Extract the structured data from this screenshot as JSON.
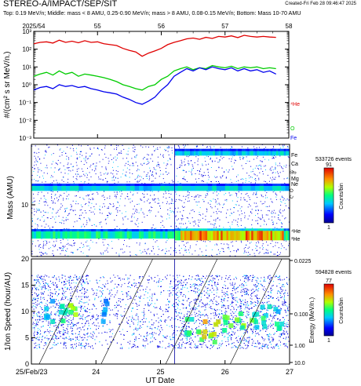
{
  "header": {
    "title": "STEREO-A/IMPACT/SEP/SIT",
    "created": "Created-Fri Feb 28 09:46:47 2025",
    "subtitle": "Top: 0.19 MeV/n; Middle: mass < 8 AMU, 0.25-0.90 MeV/n; mass > 8 AMU, 0.08-0.15 MeV/n; Bottom: Mass 10-70 AMU"
  },
  "colors": {
    "he4": "#e00000",
    "o": "#00cc00",
    "fe": "#0000ee",
    "he3_label": "#e00000",
    "o_label": "#00cc00",
    "fe_label": "#0000ee"
  },
  "chart_data": [
    {
      "type": "line",
      "panel": "top",
      "ylabel": "#/(cm² s sr MeV/n.)",
      "yscale": "log",
      "ylim": [
        0.001,
        1000
      ],
      "ytick_labels": [
        "10⁻³",
        "10⁻²",
        "10⁻¹",
        "10⁰",
        "10¹",
        "10²",
        "10³"
      ],
      "xlim": [
        54,
        58
      ],
      "top_axis_labels": [
        "2025/54",
        "55",
        "56",
        "57",
        "58"
      ],
      "species_labels": [
        "⁴He",
        "O",
        "Fe"
      ],
      "series": [
        {
          "name": "⁴He",
          "x": [
            54.0,
            54.1,
            54.2,
            54.3,
            54.4,
            54.5,
            54.6,
            54.7,
            54.8,
            54.9,
            55.0,
            55.1,
            55.2,
            55.3,
            55.4,
            55.5,
            55.6,
            55.7,
            55.8,
            55.9,
            56.0,
            56.1,
            56.2,
            56.3,
            56.4,
            56.5,
            56.6,
            56.7,
            56.8,
            56.9,
            57.0,
            57.1,
            57.2,
            57.3,
            57.4,
            57.5,
            57.6,
            57.7,
            57.8
          ],
          "values": [
            200,
            240,
            260,
            220,
            320,
            240,
            280,
            230,
            300,
            240,
            260,
            200,
            180,
            160,
            110,
            85,
            70,
            40,
            60,
            80,
            110,
            180,
            240,
            300,
            380,
            420,
            360,
            460,
            400,
            520,
            480,
            560,
            450,
            600,
            520,
            480,
            520,
            480,
            460
          ]
        },
        {
          "name": "O",
          "x": [
            54.0,
            54.1,
            54.2,
            54.3,
            54.4,
            54.5,
            54.6,
            54.7,
            54.8,
            54.9,
            55.0,
            55.1,
            55.2,
            55.3,
            55.4,
            55.5,
            55.6,
            55.7,
            55.8,
            55.9,
            56.0,
            56.1,
            56.2,
            56.3,
            56.4,
            56.5,
            56.6,
            56.7,
            56.8,
            56.9,
            57.0,
            57.1,
            57.2,
            57.3,
            57.4,
            57.5,
            57.6,
            57.7,
            57.8
          ],
          "values": [
            3,
            4,
            5,
            3.5,
            6,
            4,
            5,
            3,
            4,
            3.5,
            3,
            2.5,
            2,
            1.5,
            1,
            0.8,
            0.6,
            0.5,
            0.8,
            1,
            2,
            3,
            6,
            8,
            10,
            7,
            9,
            8,
            12,
            10,
            9,
            11,
            8,
            10,
            9,
            10,
            8,
            9,
            8
          ]
        },
        {
          "name": "Fe",
          "x": [
            54.0,
            54.1,
            54.2,
            54.3,
            54.4,
            54.5,
            54.6,
            54.7,
            54.8,
            54.9,
            55.0,
            55.1,
            55.2,
            55.3,
            55.4,
            55.5,
            55.6,
            55.7,
            55.8,
            55.9,
            56.0,
            56.1,
            56.2,
            56.3,
            56.4,
            56.5,
            56.6,
            56.7,
            56.8,
            56.9,
            57.0,
            57.1,
            57.2,
            57.3,
            57.4,
            57.5,
            57.6,
            57.7,
            57.8
          ],
          "values": [
            0.5,
            0.7,
            0.8,
            0.6,
            1,
            0.8,
            0.9,
            0.7,
            0.8,
            0.6,
            0.5,
            0.4,
            0.35,
            0.3,
            0.2,
            0.15,
            0.1,
            0.08,
            0.12,
            0.2,
            0.5,
            1,
            3,
            5,
            8,
            6,
            9,
            7,
            10,
            8,
            7,
            9,
            6,
            8,
            6,
            7,
            5,
            6,
            4
          ]
        }
      ]
    },
    {
      "type": "heatmap",
      "panel": "middle",
      "ylabel": "Mass (AMU)",
      "yscale": "log",
      "ytick_labels": [
        "10"
      ],
      "species_labels": [
        "Fe",
        "Ca",
        "Si",
        "S",
        "Mg",
        "Ne",
        "O",
        "C",
        "⁴He",
        "³He"
      ],
      "colorbar": {
        "events": "533726 events",
        "max": "91",
        "min": "1",
        "label": "Counts/bin"
      }
    },
    {
      "type": "heatmap",
      "panel": "bottom",
      "ylabel": "1/Ion Speed (hour/AU)",
      "ylim": [
        0,
        20
      ],
      "ytick_labels": [
        "0",
        "5",
        "10",
        "15",
        "20"
      ],
      "xlabel": "UT Date",
      "x_tick_labels": [
        "25/Feb/23",
        "24",
        "25",
        "26",
        "27"
      ],
      "right_axis": {
        "label": "Energy (MeV/n.)",
        "tick_labels": [
          "0.0225",
          "0.100",
          "1.00",
          "10.0"
        ]
      },
      "colorbar": {
        "events": "594828 events",
        "max": "77",
        "min": "1",
        "label": "Counts/bin"
      }
    }
  ]
}
